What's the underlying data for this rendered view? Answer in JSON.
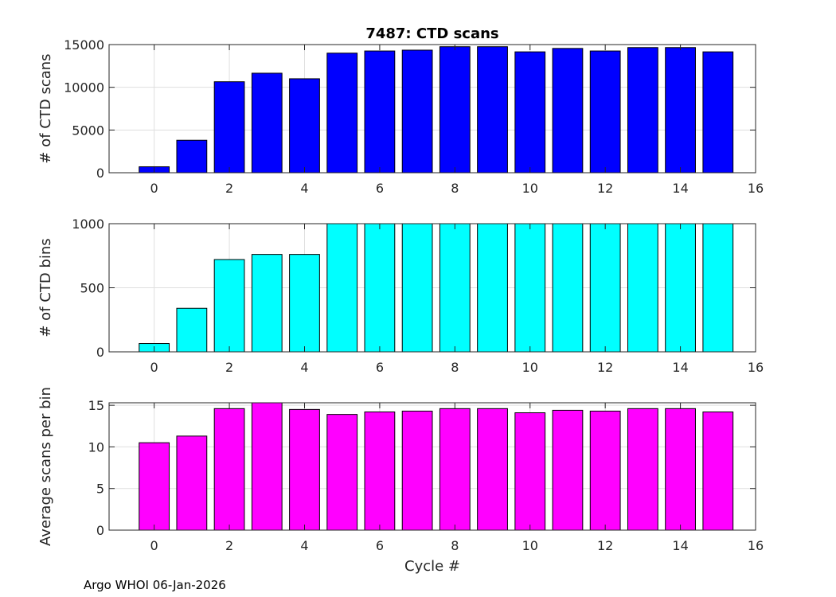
{
  "chart_data": [
    {
      "type": "bar",
      "title": "7487: CTD scans",
      "xlabel": "",
      "ylabel": "# of CTD scans",
      "color": "#0000ff",
      "categories": [
        0,
        1,
        2,
        3,
        4,
        5,
        6,
        7,
        8,
        9,
        10,
        11,
        12,
        13,
        14,
        15
      ],
      "values": [
        700,
        3800,
        10650,
        11650,
        11000,
        14000,
        14250,
        14350,
        14750,
        14750,
        14150,
        14550,
        14250,
        14650,
        14650,
        14150
      ],
      "xlim": [
        -1.2,
        16
      ],
      "ylim": [
        0,
        15000
      ],
      "xticks": [
        0,
        2,
        4,
        6,
        8,
        10,
        12,
        14,
        16
      ],
      "yticks": [
        0,
        5000,
        10000,
        15000
      ],
      "grid": true
    },
    {
      "type": "bar",
      "title": "",
      "xlabel": "",
      "ylabel": "# of CTD bins",
      "color": "#00ffff",
      "categories": [
        0,
        1,
        2,
        3,
        4,
        5,
        6,
        7,
        8,
        9,
        10,
        11,
        12,
        13,
        14,
        15
      ],
      "values": [
        65,
        340,
        720,
        760,
        760,
        1000,
        1000,
        1000,
        1000,
        1000,
        1000,
        1000,
        1000,
        1000,
        1000,
        1000
      ],
      "xlim": [
        -1.2,
        16
      ],
      "ylim": [
        0,
        1000
      ],
      "xticks": [
        0,
        2,
        4,
        6,
        8,
        10,
        12,
        14,
        16
      ],
      "yticks": [
        0,
        500,
        1000
      ],
      "grid": true
    },
    {
      "type": "bar",
      "title": "",
      "xlabel": "Cycle #",
      "ylabel": "Average scans per bin",
      "color": "#ff00ff",
      "categories": [
        0,
        1,
        2,
        3,
        4,
        5,
        6,
        7,
        8,
        9,
        10,
        11,
        12,
        13,
        14,
        15
      ],
      "values": [
        10.5,
        11.3,
        14.6,
        15.3,
        14.5,
        13.9,
        14.2,
        14.3,
        14.6,
        14.6,
        14.1,
        14.4,
        14.3,
        14.6,
        14.6,
        14.2
      ],
      "xlim": [
        -1.2,
        16
      ],
      "ylim": [
        0,
        15.3
      ],
      "xticks": [
        0,
        2,
        4,
        6,
        8,
        10,
        12,
        14,
        16
      ],
      "yticks": [
        0,
        5,
        10,
        15
      ],
      "grid": true
    }
  ],
  "footer": "Argo WHOI 06-Jan-2026"
}
